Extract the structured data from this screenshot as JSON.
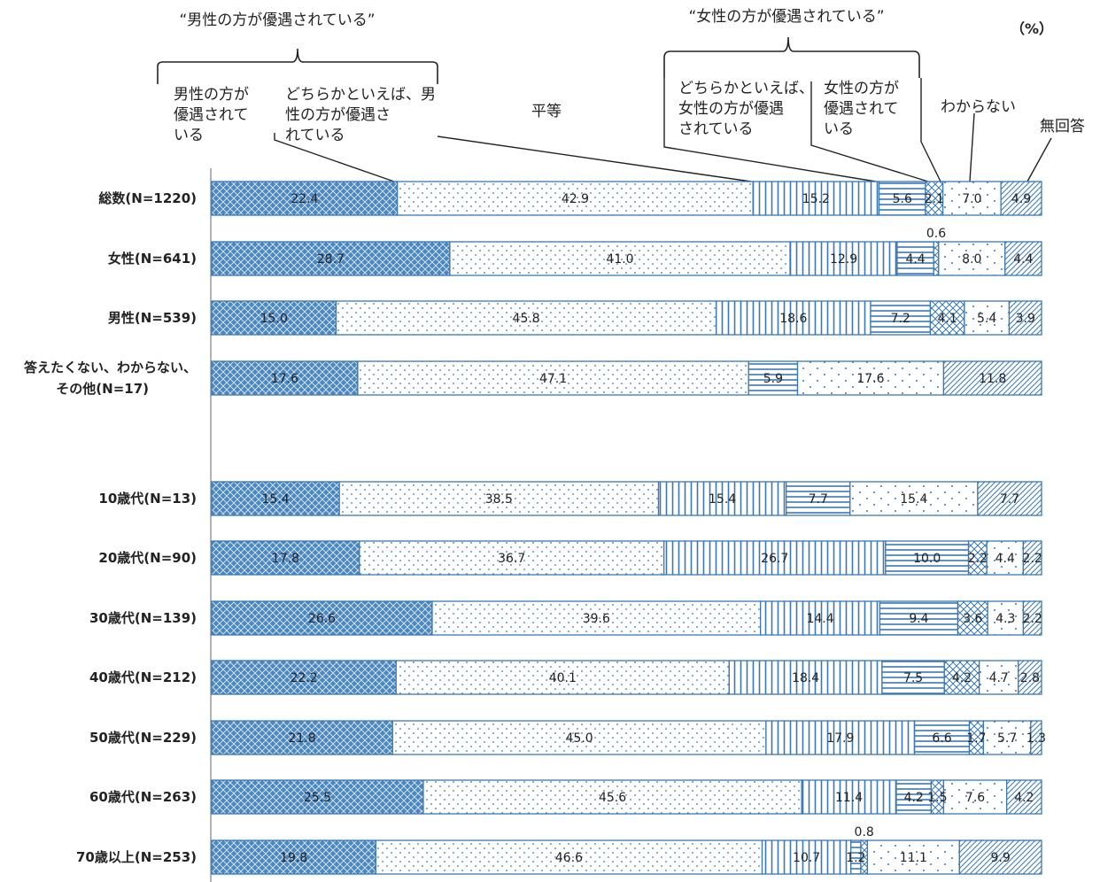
{
  "chart_data": {
    "type": "bar",
    "orientation": "horizontal-stacked-100",
    "unit_label": "（%）",
    "group_headers": [
      "“男性の方が優遇されている”",
      "“女性の方が優遇されている”"
    ],
    "legend": [
      "男性の方が優遇されている",
      "どちらかといえば、男性の方が優遇されている",
      "平等",
      "どちらかといえば、女性の方が優遇されている",
      "女性の方が優遇されている",
      "わからない",
      "無回答"
    ],
    "series_colors": [
      "#3a78b5",
      "#3a78b5",
      "#3a78b5",
      "#3a78b5",
      "#3a78b5",
      "#3a78b5",
      "#3a78b5"
    ],
    "categories": [
      "総数(N=1220)",
      "女性(N=641)",
      "男性(N=539)",
      "答えたくない、わからない、その他(N=17)",
      "10歳代(N=13)",
      "20歳代(N=90)",
      "30歳代(N=139)",
      "40歳代(N=212)",
      "50歳代(N=229)",
      "60歳代(N=263)",
      "70歳以上(N=253)"
    ],
    "values": [
      [
        22.4,
        42.9,
        15.2,
        5.6,
        2.1,
        7.0,
        4.9
      ],
      [
        28.7,
        41.0,
        12.9,
        4.4,
        0.6,
        8.0,
        4.4
      ],
      [
        15.0,
        45.8,
        18.6,
        7.2,
        4.1,
        5.4,
        3.9
      ],
      [
        17.6,
        47.1,
        0.0,
        5.9,
        0.0,
        17.6,
        11.8
      ],
      [
        15.4,
        38.5,
        15.4,
        7.7,
        0.0,
        15.4,
        7.7
      ],
      [
        17.8,
        36.7,
        26.7,
        10.0,
        2.2,
        4.4,
        2.2
      ],
      [
        26.6,
        39.6,
        14.4,
        9.4,
        3.6,
        4.3,
        2.2
      ],
      [
        22.2,
        40.1,
        18.4,
        7.5,
        4.2,
        4.7,
        2.8
      ],
      [
        21.8,
        45.0,
        17.9,
        6.6,
        1.7,
        5.7,
        1.3
      ],
      [
        25.5,
        45.6,
        11.4,
        4.2,
        1.5,
        7.6,
        4.2
      ],
      [
        19.8,
        46.6,
        10.7,
        1.2,
        0.8,
        11.1,
        9.9
      ]
    ],
    "outside_labels": [
      {
        "row": 1,
        "series": 4,
        "text": "0.6"
      },
      {
        "row": 10,
        "series": 4,
        "text": "0.8"
      }
    ]
  }
}
